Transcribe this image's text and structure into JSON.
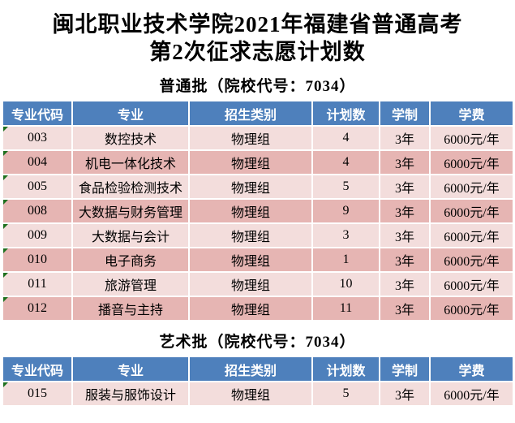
{
  "page": {
    "title_line1": "闽北职业技术学院2021年福建省普通高考",
    "title_line2": "第2次征求志愿计划数"
  },
  "colors": {
    "header_blue": "#4E80BC",
    "row_light": "#F3DDDC",
    "row_dark": "#E6B5B3",
    "indicator_green": "#1E701E"
  },
  "columns": [
    "专业代码",
    "专业",
    "招生类别",
    "计划数",
    "学制",
    "学费"
  ],
  "sections": [
    {
      "heading": "普通批（院校代号：7034）",
      "rows": [
        {
          "code": "003",
          "major": "数控技术",
          "category": "物理组",
          "plan": "4",
          "years": "3年",
          "tuition": "6000元/年"
        },
        {
          "code": "004",
          "major": "机电一体化技术",
          "category": "物理组",
          "plan": "4",
          "years": "3年",
          "tuition": "6000元/年"
        },
        {
          "code": "005",
          "major": "食品检验检测技术",
          "category": "物理组",
          "plan": "5",
          "years": "3年",
          "tuition": "6000元/年"
        },
        {
          "code": "008",
          "major": "大数据与财务管理",
          "category": "物理组",
          "plan": "9",
          "years": "3年",
          "tuition": "6000元/年"
        },
        {
          "code": "009",
          "major": "大数据与会计",
          "category": "物理组",
          "plan": "3",
          "years": "3年",
          "tuition": "6000元/年"
        },
        {
          "code": "010",
          "major": "电子商务",
          "category": "物理组",
          "plan": "1",
          "years": "3年",
          "tuition": "6000元/年"
        },
        {
          "code": "011",
          "major": "旅游管理",
          "category": "物理组",
          "plan": "10",
          "years": "3年",
          "tuition": "6000元/年"
        },
        {
          "code": "012",
          "major": "播音与主持",
          "category": "物理组",
          "plan": "11",
          "years": "3年",
          "tuition": "6000元/年"
        }
      ]
    },
    {
      "heading": "艺术批（院校代号：7034）",
      "rows": [
        {
          "code": "015",
          "major": "服装与服饰设计",
          "category": "物理组",
          "plan": "5",
          "years": "3年",
          "tuition": "6000元/年"
        }
      ]
    }
  ]
}
